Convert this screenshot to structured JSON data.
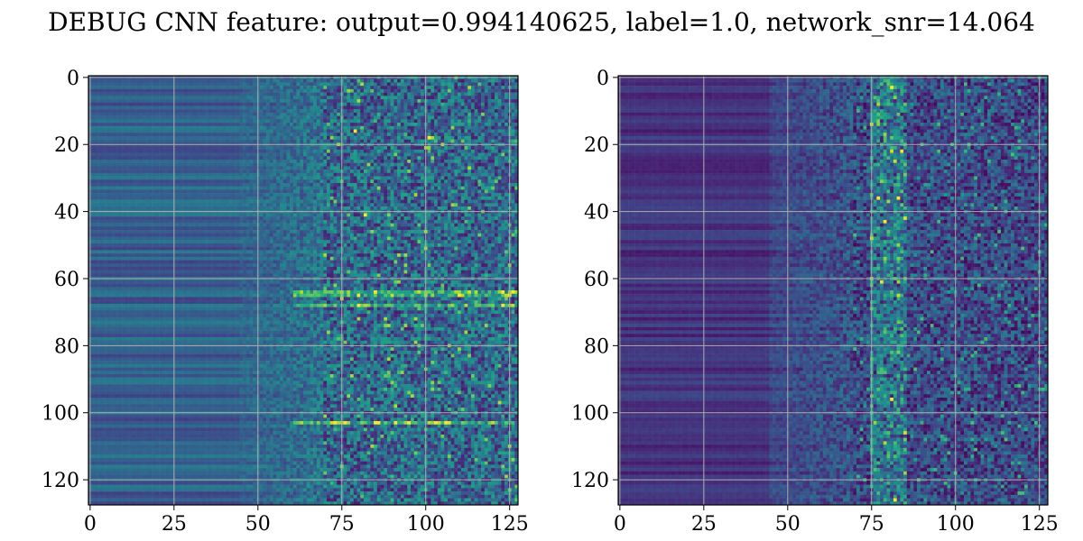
{
  "suptitle": "DEBUG CNN feature: output=0.994140625, label=1.0, network_snr=14.064",
  "chart_data": [
    {
      "type": "heatmap",
      "title": "",
      "xlabel": "",
      "ylabel": "",
      "shape": [
        128,
        128
      ],
      "colormap": "viridis",
      "xlim": [
        -0.5,
        127.5
      ],
      "ylim": [
        127.5,
        -0.5
      ],
      "x_ticks": [
        0,
        25,
        50,
        75,
        100,
        125
      ],
      "y_ticks": [
        0,
        20,
        40,
        60,
        80,
        100,
        120
      ],
      "grid": true,
      "grid_color": "#b0b0b0",
      "description_values": {
        "low_region_columns": [
          0,
          50
        ],
        "noisy_region_columns": [
          50,
          127
        ],
        "bright_rows": [
          64,
          65,
          68,
          103
        ],
        "bright_spots": [
          [
            82,
            41
          ],
          [
            101,
            18
          ],
          [
            79,
            16
          ],
          [
            91,
            103
          ],
          [
            110,
            65
          ],
          [
            123,
            64
          ]
        ]
      }
    },
    {
      "type": "heatmap",
      "title": "",
      "xlabel": "",
      "ylabel": "",
      "shape": [
        128,
        128
      ],
      "colormap": "viridis",
      "xlim": [
        -0.5,
        127.5
      ],
      "ylim": [
        127.5,
        -0.5
      ],
      "x_ticks": [
        0,
        25,
        50,
        75,
        100,
        125
      ],
      "y_ticks": [
        0,
        20,
        40,
        60,
        80,
        100,
        120
      ],
      "grid": true,
      "grid_color": "#b0b0b0",
      "description_values": {
        "low_region_columns": [
          0,
          50
        ],
        "noisy_region_columns": [
          50,
          127
        ],
        "bright_column_band": [
          75,
          85
        ],
        "bright_spots": [
          [
            81,
            3
          ],
          [
            83,
            36
          ],
          [
            82,
            126
          ],
          [
            79,
            43
          ]
        ]
      }
    }
  ]
}
